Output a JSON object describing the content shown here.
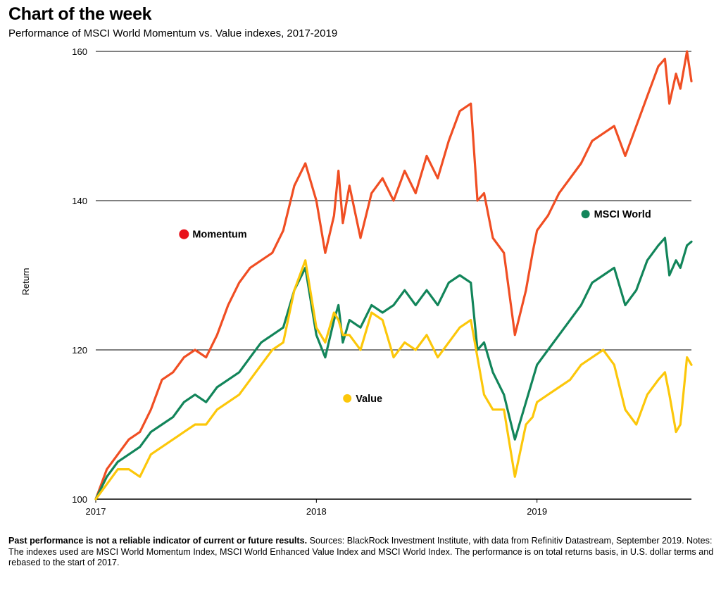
{
  "header": {
    "title": "Chart of the week",
    "subtitle": "Performance of MSCI World Momentum vs. Value indexes, 2017-2019"
  },
  "footnote": {
    "bold": "Past performance is not a reliable indicator of current or future results.",
    "text": " Sources: BlackRock Investment Institute, with data from Refinitiv Datastream, September 2019. Notes: The indexes used are MSCI World Momentum Index, MSCI World Enhanced Value Index and MSCI World Index. The performance is on total returns basis, in U.S. dollar terms and rebased to the start of 2017."
  },
  "colors": {
    "momentum": "#f04e23",
    "msci_world": "#12855a",
    "value": "#fcc70a",
    "momentum_marker": "#e8111a"
  },
  "chart_data": {
    "type": "line",
    "title": "Chart of the week",
    "subtitle": "Performance of MSCI World Momentum vs. Value indexes, 2017-2019",
    "ylabel": "Return",
    "xlabel": "",
    "ylim": [
      100,
      160
    ],
    "yticks": [
      100,
      120,
      140,
      160
    ],
    "xlim": [
      2017.0,
      2019.7
    ],
    "xticks": [
      2017,
      2018,
      2019
    ],
    "grid": "horizontal",
    "legend": "inline labels",
    "series": [
      {
        "name": "Momentum",
        "color": "#f04e23",
        "x": [
          2017.0,
          2017.05,
          2017.1,
          2017.15,
          2017.2,
          2017.25,
          2017.3,
          2017.35,
          2017.4,
          2017.45,
          2017.5,
          2017.55,
          2017.6,
          2017.65,
          2017.7,
          2017.75,
          2017.8,
          2017.85,
          2017.9,
          2017.95,
          2018.0,
          2018.04,
          2018.08,
          2018.1,
          2018.12,
          2018.15,
          2018.2,
          2018.25,
          2018.3,
          2018.35,
          2018.4,
          2018.45,
          2018.5,
          2018.55,
          2018.6,
          2018.65,
          2018.7,
          2018.73,
          2018.76,
          2018.8,
          2018.85,
          2018.9,
          2018.95,
          2018.98,
          2019.0,
          2019.05,
          2019.1,
          2019.15,
          2019.2,
          2019.25,
          2019.3,
          2019.35,
          2019.4,
          2019.45,
          2019.5,
          2019.55,
          2019.58,
          2019.6,
          2019.63,
          2019.65,
          2019.68,
          2019.7
        ],
        "values": [
          100,
          104,
          106,
          108,
          109,
          112,
          116,
          117,
          119,
          120,
          119,
          122,
          126,
          129,
          131,
          132,
          133,
          136,
          142,
          145,
          140,
          133,
          138,
          144,
          137,
          142,
          135,
          141,
          143,
          140,
          144,
          141,
          146,
          143,
          148,
          152,
          153,
          140,
          141,
          135,
          133,
          122,
          128,
          133,
          136,
          138,
          141,
          143,
          145,
          148,
          149,
          150,
          146,
          150,
          154,
          158,
          159,
          153,
          157,
          155,
          160,
          156
        ]
      },
      {
        "name": "MSCI World",
        "color": "#12855a",
        "x": [
          2017.0,
          2017.05,
          2017.1,
          2017.15,
          2017.2,
          2017.25,
          2017.3,
          2017.35,
          2017.4,
          2017.45,
          2017.5,
          2017.55,
          2017.6,
          2017.65,
          2017.7,
          2017.75,
          2017.8,
          2017.85,
          2017.9,
          2017.95,
          2018.0,
          2018.04,
          2018.08,
          2018.1,
          2018.12,
          2018.15,
          2018.2,
          2018.25,
          2018.3,
          2018.35,
          2018.4,
          2018.45,
          2018.5,
          2018.55,
          2018.6,
          2018.65,
          2018.7,
          2018.73,
          2018.76,
          2018.8,
          2018.85,
          2018.9,
          2018.95,
          2018.98,
          2019.0,
          2019.05,
          2019.1,
          2019.15,
          2019.2,
          2019.25,
          2019.3,
          2019.35,
          2019.4,
          2019.45,
          2019.5,
          2019.55,
          2019.58,
          2019.6,
          2019.63,
          2019.65,
          2019.68,
          2019.7
        ],
        "values": [
          100,
          103,
          105,
          106,
          107,
          109,
          110,
          111,
          113,
          114,
          113,
          115,
          116,
          117,
          119,
          121,
          122,
          123,
          128,
          131,
          122,
          119,
          124,
          126,
          121,
          124,
          123,
          126,
          125,
          126,
          128,
          126,
          128,
          126,
          129,
          130,
          129,
          120,
          121,
          117,
          114,
          108,
          113,
          116,
          118,
          120,
          122,
          124,
          126,
          129,
          130,
          131,
          126,
          128,
          132,
          134,
          135,
          130,
          132,
          131,
          134,
          134.5
        ]
      },
      {
        "name": "Value",
        "color": "#fcc70a",
        "x": [
          2017.0,
          2017.05,
          2017.1,
          2017.15,
          2017.2,
          2017.25,
          2017.3,
          2017.35,
          2017.4,
          2017.45,
          2017.5,
          2017.55,
          2017.6,
          2017.65,
          2017.7,
          2017.75,
          2017.8,
          2017.85,
          2017.9,
          2017.95,
          2018.0,
          2018.04,
          2018.08,
          2018.1,
          2018.12,
          2018.15,
          2018.2,
          2018.25,
          2018.3,
          2018.35,
          2018.4,
          2018.45,
          2018.5,
          2018.55,
          2018.6,
          2018.65,
          2018.7,
          2018.73,
          2018.76,
          2018.8,
          2018.85,
          2018.9,
          2018.95,
          2018.98,
          2019.0,
          2019.05,
          2019.1,
          2019.15,
          2019.2,
          2019.25,
          2019.3,
          2019.35,
          2019.4,
          2019.45,
          2019.5,
          2019.55,
          2019.58,
          2019.6,
          2019.63,
          2019.65,
          2019.68,
          2019.7
        ],
        "values": [
          100,
          102,
          104,
          104,
          103,
          106,
          107,
          108,
          109,
          110,
          110,
          112,
          113,
          114,
          116,
          118,
          120,
          121,
          128,
          132,
          123,
          121,
          125,
          124,
          122,
          122,
          120,
          125,
          124,
          119,
          121,
          120,
          122,
          119,
          121,
          123,
          124,
          119,
          114,
          112,
          112,
          103,
          110,
          111,
          113,
          114,
          115,
          116,
          118,
          119,
          120,
          118,
          112,
          110,
          114,
          116,
          117,
          114,
          109,
          110,
          119,
          118
        ]
      }
    ],
    "annotations": [
      {
        "label": "Momentum",
        "x": 2017.4,
        "y": 135.5
      },
      {
        "label": "MSCI World",
        "x": 2019.22,
        "y": 138.2
      },
      {
        "label": "Value",
        "x": 2018.14,
        "y": 113.5
      }
    ]
  }
}
